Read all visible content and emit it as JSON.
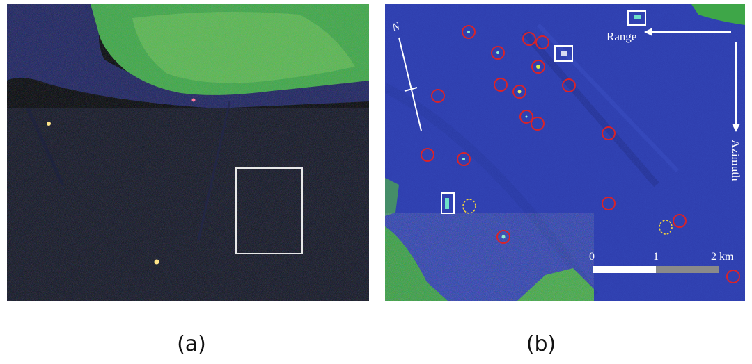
{
  "panels": [
    {
      "caption": "(a)"
    },
    {
      "caption": "(b)",
      "labels": {
        "range": "Range",
        "azimuth": "Azimuth",
        "north": "N"
      },
      "scale": {
        "start": "0",
        "mid": "1",
        "end": "2 km"
      }
    }
  ]
}
